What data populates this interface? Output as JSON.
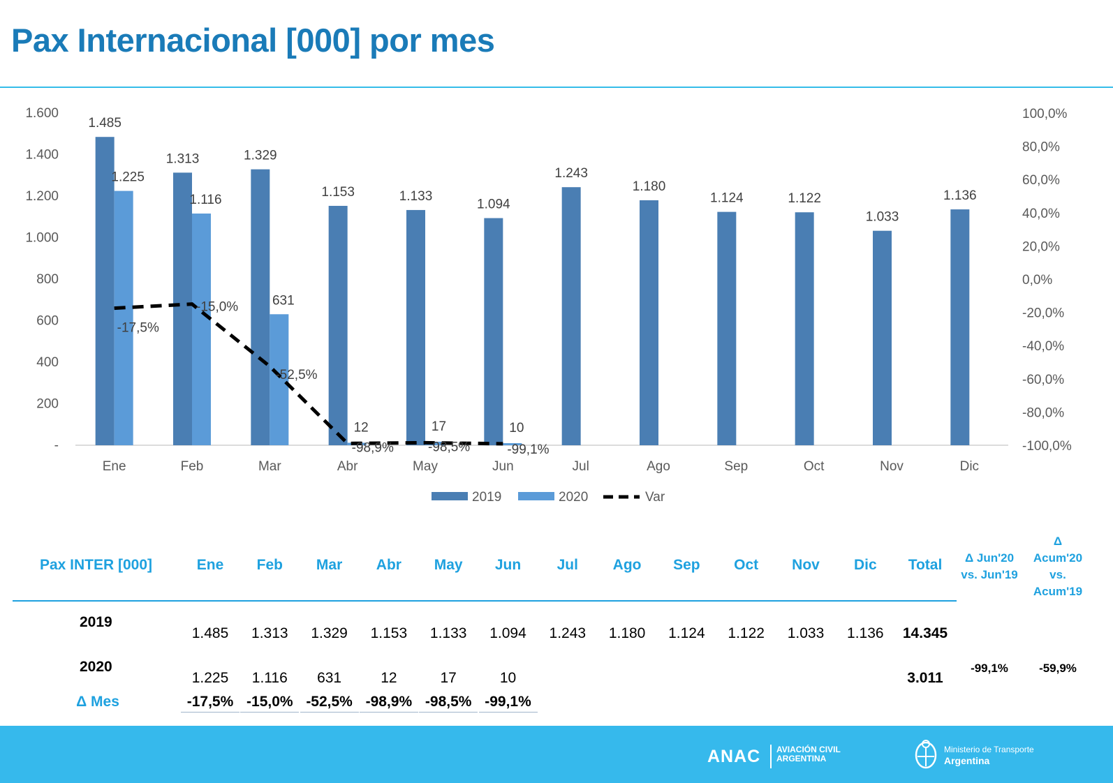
{
  "title": "Pax Internacional [000] por mes",
  "colors": {
    "s2019": "#4a7eb3",
    "s2020": "#5b9bd8",
    "accent": "#1ea1df",
    "footer": "#36b9ec"
  },
  "chart_data": {
    "type": "bar",
    "categories": [
      "Ene",
      "Feb",
      "Mar",
      "Abr",
      "May",
      "Jun",
      "Jul",
      "Ago",
      "Sep",
      "Oct",
      "Nov",
      "Dic"
    ],
    "series": [
      {
        "name": "2019",
        "type": "bar",
        "values": [
          1485,
          1313,
          1329,
          1153,
          1133,
          1094,
          1243,
          1180,
          1124,
          1122,
          1033,
          1136
        ],
        "labels": [
          "1.485",
          "1.313",
          "1.329",
          "1.153",
          "1.133",
          "1.094",
          "1.243",
          "1.180",
          "1.124",
          "1.122",
          "1.033",
          "1.136"
        ]
      },
      {
        "name": "2020",
        "type": "bar",
        "values": [
          1225,
          1116,
          631,
          12,
          17,
          10,
          null,
          null,
          null,
          null,
          null,
          null
        ],
        "labels": [
          "1.225",
          "1.116",
          "631",
          "12",
          "17",
          "10",
          "",
          "",
          "",
          "",
          "",
          ""
        ]
      },
      {
        "name": "Var",
        "type": "line",
        "axis": "secondary",
        "style": "dashed",
        "values": [
          -17.5,
          -15.0,
          -52.5,
          -98.9,
          -98.5,
          -99.1,
          null,
          null,
          null,
          null,
          null,
          null
        ],
        "labels": [
          "-17,5%",
          "-15,0%",
          "-52,5%",
          "-98,9%",
          "-98,5%",
          "-99,1%",
          "",
          "",
          "",
          "",
          "",
          ""
        ]
      }
    ],
    "ylim": [
      0,
      1600
    ],
    "y2lim": [
      -100,
      100
    ],
    "yticks": [
      "-",
      "200",
      "400",
      "600",
      "800",
      "1.000",
      "1.200",
      "1.400",
      "1.600"
    ],
    "y2ticks": [
      "-100,0%",
      "-80,0%",
      "-60,0%",
      "-40,0%",
      "-20,0%",
      "0,0%",
      "20,0%",
      "40,0%",
      "60,0%",
      "80,0%",
      "100,0%"
    ],
    "legend": [
      "2019",
      "2020",
      "Var"
    ],
    "legend_position": "bottom"
  },
  "table": {
    "header_label": "Pax INTER [000]",
    "months": [
      "Ene",
      "Feb",
      "Mar",
      "Abr",
      "May",
      "Jun",
      "Jul",
      "Ago",
      "Sep",
      "Oct",
      "Nov",
      "Dic"
    ],
    "total_label": "Total",
    "delta_jun": [
      "Δ Jun'20",
      "vs. Jun'19"
    ],
    "delta_acum": [
      "Δ",
      "Acum'20",
      "vs.",
      "Acum'19"
    ],
    "rows": [
      {
        "label": "2019",
        "values": [
          "1.485",
          "1.313",
          "1.329",
          "1.153",
          "1.133",
          "1.094",
          "1.243",
          "1.180",
          "1.124",
          "1.122",
          "1.033",
          "1.136"
        ],
        "total": "14.345"
      },
      {
        "label": "2020",
        "values": [
          "1.225",
          "1.116",
          "631",
          "12",
          "17",
          "10",
          "",
          "",
          "",
          "",
          "",
          ""
        ],
        "total": "3.011",
        "delta_jun": "-99,1%",
        "delta_acum": "-59,9%"
      }
    ],
    "delta_label": "Δ Mes",
    "delta_values": [
      "-17,5%",
      "-15,0%",
      "-52,5%",
      "-98,9%",
      "-98,5%",
      "-99,1%"
    ]
  },
  "footer": {
    "anac": "ANAC",
    "anac_sub": [
      "AVIACIÓN CIVIL",
      "ARGENTINA"
    ],
    "ministry": [
      "Ministerio de Transporte",
      "Argentina"
    ]
  }
}
